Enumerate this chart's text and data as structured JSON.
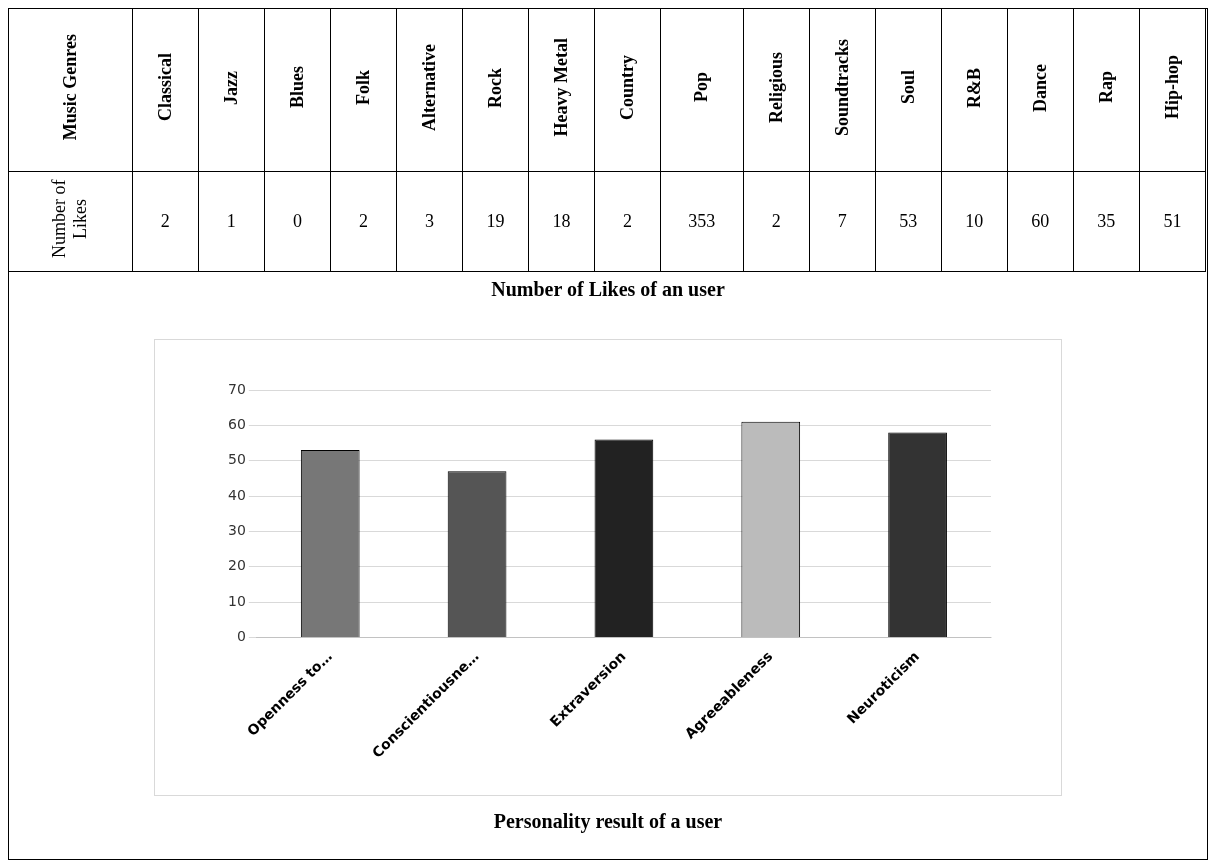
{
  "chart_data": [
    {
      "type": "other",
      "title": "Number of Likes of an user",
      "xlabel": "Music Genres",
      "ylabel": "Number of Likes",
      "categories": [
        "Classical",
        "Jazz",
        "Blues",
        "Folk",
        "Alternative",
        "Rock",
        "Heavy Metal",
        "Country",
        "Pop",
        "Religious",
        "Soundtracks",
        "Soul",
        "R&B",
        "Dance",
        "Rap",
        "Hip-hop"
      ],
      "values": [
        2,
        1,
        0,
        2,
        3,
        19,
        18,
        2,
        353,
        2,
        7,
        53,
        10,
        60,
        35,
        51
      ],
      "data_labels": true
    },
    {
      "type": "bar",
      "title": "Personality result of a user",
      "categories": [
        "Openness to…",
        "Conscientiousne…",
        "Extraversion",
        "Agreeableness",
        "Neuroticism"
      ],
      "values": [
        53,
        47,
        56,
        61,
        58
      ],
      "colors": [
        "#777777",
        "#555555",
        "#222222",
        "#bbbbbb",
        "#333333"
      ],
      "ylim": [
        0,
        70
      ],
      "yticks": [
        0,
        10,
        20,
        30,
        40,
        50,
        60,
        70
      ],
      "grid": "y"
    }
  ]
}
